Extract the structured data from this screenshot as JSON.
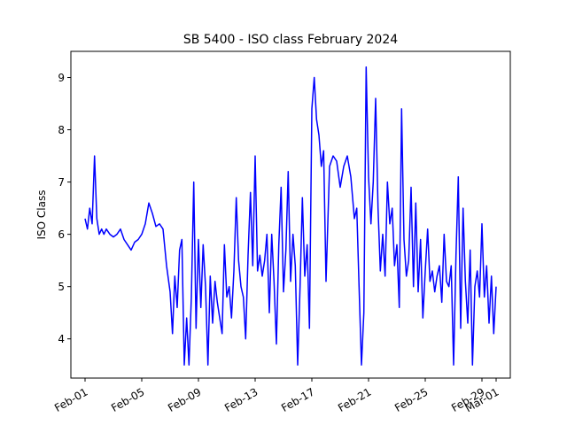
{
  "chart_data": {
    "type": "line",
    "title": "SB 5400 - ISO class February 2024",
    "xlabel": "",
    "ylabel": "ISO Class",
    "ylim": [
      3.25,
      9.5
    ],
    "xlim": [
      "2024-01-31",
      "2024-03-02"
    ],
    "grid": false,
    "line_color": "#0000ff",
    "y_ticks": [
      4,
      5,
      6,
      7,
      8,
      9
    ],
    "x_ticks": [
      {
        "date": "2024-02-01",
        "label": "Feb-01"
      },
      {
        "date": "2024-02-05",
        "label": "Feb-05"
      },
      {
        "date": "2024-02-09",
        "label": "Feb-09"
      },
      {
        "date": "2024-02-13",
        "label": "Feb-13"
      },
      {
        "date": "2024-02-17",
        "label": "Feb-17"
      },
      {
        "date": "2024-02-21",
        "label": "Feb-21"
      },
      {
        "date": "2024-02-25",
        "label": "Feb-25"
      },
      {
        "date": "2024-02-29",
        "label": "Feb-29"
      },
      {
        "date": "2024-03-01",
        "label": "Mar-01"
      }
    ],
    "series": [
      {
        "x": [
          "2024-02-01T00:00",
          "2024-02-01T04:00",
          "2024-02-01T08:00",
          "2024-02-01T12:00",
          "2024-02-01T16:00",
          "2024-02-01T20:00",
          "2024-02-02T00:00",
          "2024-02-02T04:00",
          "2024-02-02T08:00",
          "2024-02-02T12:00",
          "2024-02-02T18:00",
          "2024-02-03T00:00",
          "2024-02-03T06:00",
          "2024-02-03T12:00",
          "2024-02-03T18:00",
          "2024-02-04T00:00",
          "2024-02-04T06:00",
          "2024-02-04T12:00",
          "2024-02-04T18:00",
          "2024-02-05T00:00",
          "2024-02-05T06:00",
          "2024-02-05T12:00",
          "2024-02-05T18:00",
          "2024-02-06T00:00",
          "2024-02-06T06:00",
          "2024-02-06T12:00",
          "2024-02-06T18:00",
          "2024-02-07T00:00",
          "2024-02-07T04:00",
          "2024-02-07T08:00",
          "2024-02-07T12:00",
          "2024-02-07T16:00",
          "2024-02-07T20:00",
          "2024-02-08T00:00",
          "2024-02-08T04:00",
          "2024-02-08T08:00",
          "2024-02-08T12:00",
          "2024-02-08T16:00",
          "2024-02-08T20:00",
          "2024-02-09T00:00",
          "2024-02-09T04:00",
          "2024-02-09T08:00",
          "2024-02-09T12:00",
          "2024-02-09T16:00",
          "2024-02-09T20:00",
          "2024-02-10T00:00",
          "2024-02-10T04:00",
          "2024-02-10T08:00",
          "2024-02-10T12:00",
          "2024-02-10T16:00",
          "2024-02-10T20:00",
          "2024-02-11T00:00",
          "2024-02-11T04:00",
          "2024-02-11T08:00",
          "2024-02-11T12:00",
          "2024-02-11T16:00",
          "2024-02-11T20:00",
          "2024-02-12T00:00",
          "2024-02-12T04:00",
          "2024-02-12T08:00",
          "2024-02-12T12:00",
          "2024-02-12T16:00",
          "2024-02-12T20:00",
          "2024-02-13T00:00",
          "2024-02-13T04:00",
          "2024-02-13T08:00",
          "2024-02-13T12:00",
          "2024-02-13T16:00",
          "2024-02-13T20:00",
          "2024-02-14T00:00",
          "2024-02-14T04:00",
          "2024-02-14T08:00",
          "2024-02-14T12:00",
          "2024-02-14T16:00",
          "2024-02-14T20:00",
          "2024-02-15T00:00",
          "2024-02-15T04:00",
          "2024-02-15T08:00",
          "2024-02-15T12:00",
          "2024-02-15T16:00",
          "2024-02-15T20:00",
          "2024-02-16T00:00",
          "2024-02-16T04:00",
          "2024-02-16T08:00",
          "2024-02-16T12:00",
          "2024-02-16T16:00",
          "2024-02-16T20:00",
          "2024-02-17T00:00",
          "2024-02-17T04:00",
          "2024-02-17T08:00",
          "2024-02-17T12:00",
          "2024-02-17T16:00",
          "2024-02-17T20:00",
          "2024-02-18T00:00",
          "2024-02-18T06:00",
          "2024-02-18T12:00",
          "2024-02-18T18:00",
          "2024-02-19T00:00",
          "2024-02-19T06:00",
          "2024-02-19T12:00",
          "2024-02-19T18:00",
          "2024-02-20T00:00",
          "2024-02-20T04:00",
          "2024-02-20T08:00",
          "2024-02-20T12:00",
          "2024-02-20T16:00",
          "2024-02-20T20:00",
          "2024-02-21T00:00",
          "2024-02-21T04:00",
          "2024-02-21T08:00",
          "2024-02-21T12:00",
          "2024-02-21T16:00",
          "2024-02-21T20:00",
          "2024-02-22T00:00",
          "2024-02-22T04:00",
          "2024-02-22T08:00",
          "2024-02-22T12:00",
          "2024-02-22T16:00",
          "2024-02-22T20:00",
          "2024-02-23T00:00",
          "2024-02-23T04:00",
          "2024-02-23T08:00",
          "2024-02-23T12:00",
          "2024-02-23T16:00",
          "2024-02-23T20:00",
          "2024-02-24T00:00",
          "2024-02-24T04:00",
          "2024-02-24T08:00",
          "2024-02-24T12:00",
          "2024-02-24T16:00",
          "2024-02-24T20:00",
          "2024-02-25T00:00",
          "2024-02-25T04:00",
          "2024-02-25T08:00",
          "2024-02-25T12:00",
          "2024-02-25T16:00",
          "2024-02-25T20:00",
          "2024-02-26T00:00",
          "2024-02-26T04:00",
          "2024-02-26T08:00",
          "2024-02-26T12:00",
          "2024-02-26T16:00",
          "2024-02-26T20:00",
          "2024-02-27T00:00",
          "2024-02-27T04:00",
          "2024-02-27T08:00",
          "2024-02-27T12:00",
          "2024-02-27T16:00",
          "2024-02-27T20:00",
          "2024-02-28T00:00",
          "2024-02-28T04:00",
          "2024-02-28T08:00",
          "2024-02-28T12:00",
          "2024-02-28T16:00",
          "2024-02-28T20:00",
          "2024-02-29T00:00",
          "2024-02-29T04:00",
          "2024-02-29T08:00",
          "2024-02-29T12:00",
          "2024-02-29T16:00",
          "2024-02-29T20:00",
          "2024-03-01T00:00"
        ],
        "y": [
          6.3,
          6.1,
          6.5,
          6.2,
          7.5,
          6.3,
          6.0,
          6.1,
          6.0,
          6.1,
          6.0,
          5.95,
          6.0,
          6.1,
          5.9,
          5.8,
          5.7,
          5.85,
          5.9,
          6.0,
          6.2,
          6.6,
          6.4,
          6.15,
          6.2,
          6.1,
          5.4,
          4.9,
          4.1,
          5.2,
          4.6,
          5.7,
          5.9,
          3.5,
          4.4,
          3.5,
          4.8,
          7.0,
          4.2,
          5.9,
          4.6,
          5.8,
          5.0,
          3.5,
          5.2,
          4.3,
          5.1,
          4.7,
          4.4,
          4.1,
          5.8,
          4.8,
          5.0,
          4.4,
          5.3,
          6.7,
          5.5,
          5.0,
          4.8,
          4.0,
          5.6,
          6.8,
          5.4,
          7.5,
          5.3,
          5.6,
          5.2,
          5.5,
          6.0,
          4.5,
          6.0,
          5.1,
          3.9,
          5.8,
          6.9,
          4.9,
          5.7,
          7.2,
          5.1,
          6.0,
          5.4,
          3.5,
          5.0,
          6.7,
          5.2,
          5.8,
          4.2,
          8.4,
          9.0,
          8.2,
          7.9,
          7.3,
          7.6,
          5.1,
          7.3,
          7.5,
          7.4,
          6.9,
          7.3,
          7.5,
          7.1,
          6.3,
          6.5,
          5.0,
          3.5,
          4.5,
          9.2,
          7.1,
          6.2,
          7.0,
          8.6,
          6.5,
          5.3,
          6.0,
          5.2,
          7.0,
          6.2,
          6.5,
          5.4,
          5.8,
          4.6,
          8.4,
          5.9,
          5.2,
          5.5,
          6.9,
          5.0,
          6.6,
          4.9,
          5.9,
          4.4,
          5.3,
          6.1,
          5.1,
          5.3,
          4.9,
          5.2,
          5.4,
          4.7,
          6.0,
          5.1,
          5.0,
          5.4,
          3.5,
          5.6,
          7.1,
          4.2,
          6.5,
          5.1,
          4.3,
          5.7,
          3.5,
          5.0,
          5.3,
          4.8,
          6.2,
          4.8,
          5.4,
          4.3,
          5.2,
          4.1,
          5.0
        ]
      }
    ]
  }
}
